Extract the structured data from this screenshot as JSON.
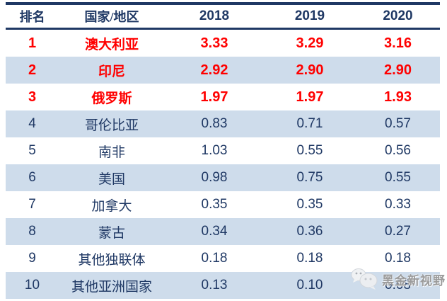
{
  "chart_data": {
    "type": "table",
    "columns": [
      "排名",
      "国家/地区",
      "2018",
      "2019",
      "2020"
    ],
    "rows": [
      {
        "rank": "1",
        "country": "澳大利亚",
        "values": [
          "3.33",
          "3.29",
          "3.16"
        ],
        "highlight": true
      },
      {
        "rank": "2",
        "country": "印尼",
        "values": [
          "2.92",
          "2.90",
          "2.90"
        ],
        "highlight": true
      },
      {
        "rank": "3",
        "country": "俄罗斯",
        "values": [
          "1.97",
          "1.97",
          "1.93"
        ],
        "highlight": true
      },
      {
        "rank": "4",
        "country": "哥伦比亚",
        "values": [
          "0.83",
          "0.71",
          "0.57"
        ],
        "highlight": false
      },
      {
        "rank": "5",
        "country": "南非",
        "values": [
          "1.03",
          "0.55",
          "0.56"
        ],
        "highlight": false
      },
      {
        "rank": "6",
        "country": "美国",
        "values": [
          "0.98",
          "0.75",
          "0.55"
        ],
        "highlight": false
      },
      {
        "rank": "7",
        "country": "加拿大",
        "values": [
          "0.35",
          "0.35",
          "0.33"
        ],
        "highlight": false
      },
      {
        "rank": "8",
        "country": "蒙古",
        "values": [
          "0.34",
          "0.36",
          "0.27"
        ],
        "highlight": false
      },
      {
        "rank": "9",
        "country": "其他独联体",
        "values": [
          "0.18",
          "0.18",
          "0.18"
        ],
        "highlight": false
      },
      {
        "rank": "10",
        "country": "其他亚洲国家",
        "values": [
          "0.13",
          "0.10",
          "0.08"
        ],
        "highlight": false
      }
    ],
    "layout": {
      "striped": true,
      "stripe_rows": "even rows (2,4,6,8,10) light blue",
      "highlight_style": "top 3 rows bold red"
    }
  },
  "watermark": {
    "text": "黑金新视野",
    "icon": "chat-bubbles-icon"
  },
  "colors": {
    "navy": "#1F3864",
    "red": "#FF0000",
    "row-blue": "#CEDCEB",
    "watermark-gray": "#9B9B9B",
    "bg": "#FFFFFF"
  }
}
